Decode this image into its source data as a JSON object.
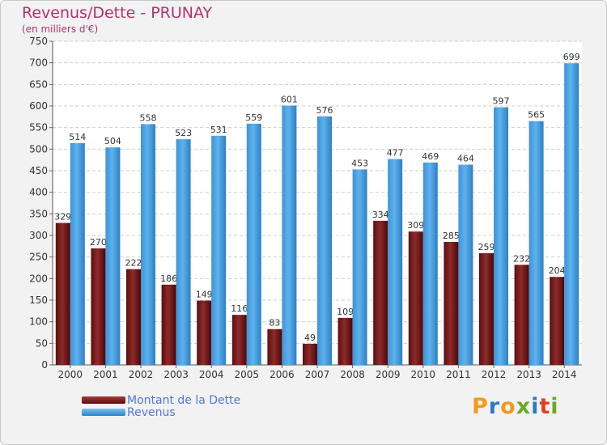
{
  "header": {
    "title": "Revenus/Dette - PRUNAY",
    "subtitle": "(en milliers d'€)"
  },
  "chart_data": {
    "type": "bar",
    "categories": [
      "2000",
      "2001",
      "2002",
      "2003",
      "2004",
      "2005",
      "2006",
      "2007",
      "2008",
      "2009",
      "2010",
      "2011",
      "2012",
      "2013",
      "2014"
    ],
    "series": [
      {
        "name": "Montant de la Dette",
        "values": [
          329,
          270,
          222,
          186,
          149,
          116,
          83,
          49,
          109,
          334,
          309,
          285,
          259,
          232,
          204
        ],
        "color": "#7d1a1a"
      },
      {
        "name": "Revenus",
        "values": [
          514,
          504,
          558,
          523,
          531,
          559,
          601,
          576,
          453,
          477,
          469,
          464,
          597,
          565,
          699
        ],
        "color": "#4aa0e0"
      }
    ],
    "ylim": [
      0,
      750
    ],
    "yticks": [
      0,
      50,
      100,
      150,
      200,
      250,
      300,
      350,
      400,
      450,
      500,
      550,
      600,
      650,
      700,
      750
    ],
    "grid": true,
    "legend_position": "bottom-left"
  },
  "brand": {
    "letters": [
      {
        "char": "P",
        "color": "#f29a1f"
      },
      {
        "char": "r",
        "color": "#2e78c8"
      },
      {
        "char": "o",
        "color": "#f29a1f"
      },
      {
        "char": "x",
        "color": "#6aaa28"
      },
      {
        "char": "i",
        "color": "#2e78c8"
      },
      {
        "char": "t",
        "color": "#e0401a"
      },
      {
        "char": "i",
        "color": "#6aaa28"
      }
    ]
  }
}
